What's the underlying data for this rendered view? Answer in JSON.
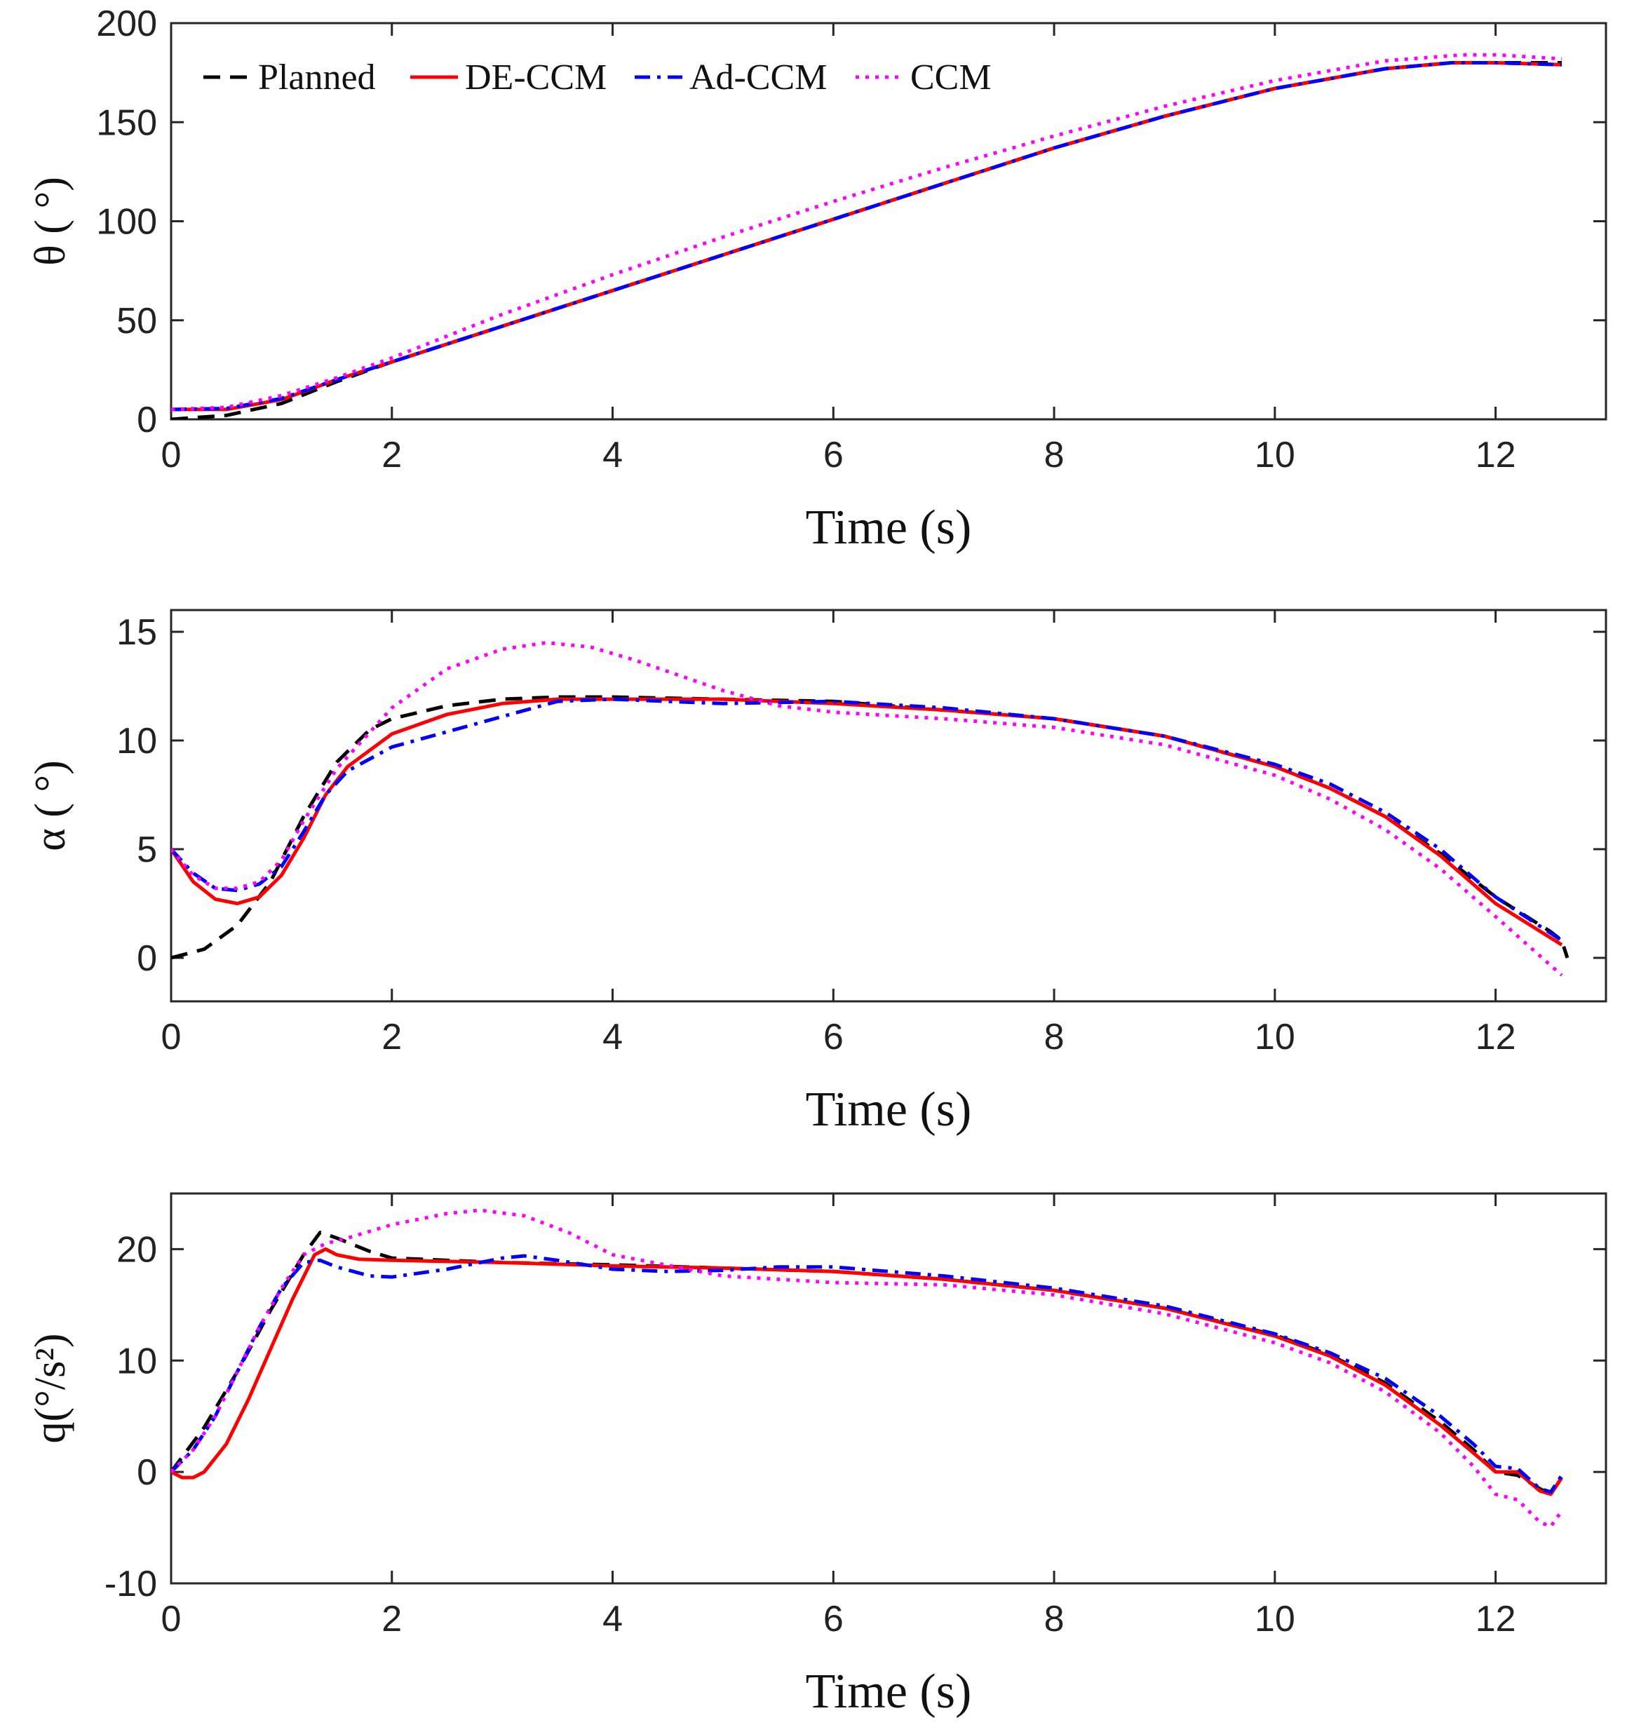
{
  "colors": {
    "planned": "#000000",
    "de_ccm": "#ff0000",
    "ad_ccm": "#0000ff",
    "ccm": "#ff00ff",
    "axis": "#262626"
  },
  "chart_data": [
    {
      "type": "line",
      "title": "",
      "xlabel": "Time (s)",
      "ylabel": "θ ( °)",
      "xlim": [
        0,
        13
      ],
      "ylim": [
        0,
        200
      ],
      "xticks": [
        "0",
        "2",
        "4",
        "6",
        "8",
        "10",
        "12"
      ],
      "yticks": [
        "0",
        "50",
        "100",
        "150",
        "200"
      ],
      "legend": {
        "position": "top",
        "entries": [
          "Planned",
          "DE-CCM",
          "Ad-CCM",
          "CCM"
        ]
      },
      "series": [
        {
          "name": "Planned",
          "style": "dashed",
          "color": "#000000",
          "x": [
            0,
            0.5,
            1,
            1.5,
            2,
            3,
            4,
            5,
            6,
            7,
            8,
            9,
            10,
            11,
            11.6,
            12,
            12.6
          ],
          "y": [
            0,
            2,
            8,
            19,
            29,
            47,
            65,
            83,
            101,
            119,
            137,
            153,
            167,
            177,
            180,
            180,
            180
          ]
        },
        {
          "name": "DE-CCM",
          "style": "solid",
          "color": "#ff0000",
          "x": [
            0,
            0.5,
            1,
            1.5,
            2,
            3,
            4,
            5,
            6,
            7,
            8,
            9,
            10,
            11,
            11.6,
            12,
            12.6
          ],
          "y": [
            5,
            5,
            10,
            20,
            29,
            47,
            65,
            83,
            101,
            119,
            137,
            153,
            167,
            177,
            180,
            180,
            179
          ]
        },
        {
          "name": "Ad-CCM",
          "style": "dashdot",
          "color": "#0000ff",
          "x": [
            0,
            0.5,
            1,
            1.5,
            2,
            3,
            4,
            5,
            6,
            7,
            8,
            9,
            10,
            11,
            11.6,
            12,
            12.6
          ],
          "y": [
            5,
            5.5,
            10.5,
            20,
            29,
            47,
            65,
            83,
            101,
            119,
            137,
            153,
            167,
            177,
            180,
            180,
            179
          ]
        },
        {
          "name": "CCM",
          "style": "dotted",
          "color": "#ff00ff",
          "x": [
            0,
            0.5,
            1,
            1.5,
            2,
            3,
            4,
            5,
            6,
            7,
            8,
            9,
            10,
            11,
            11.7,
            12,
            12.6
          ],
          "y": [
            5,
            6,
            12,
            21,
            31,
            53,
            73,
            92,
            110,
            127,
            143,
            158,
            171,
            181,
            184,
            184,
            182
          ]
        }
      ]
    },
    {
      "type": "line",
      "title": "",
      "xlabel": "Time (s)",
      "ylabel": "α ( °)",
      "xlim": [
        0,
        13
      ],
      "ylim": [
        -2,
        16
      ],
      "xticks": [
        "0",
        "2",
        "4",
        "6",
        "8",
        "10",
        "12"
      ],
      "yticks": [
        "0",
        "5",
        "10",
        "15"
      ],
      "series": [
        {
          "name": "Planned",
          "style": "dashed",
          "color": "#000000",
          "x": [
            0,
            0.3,
            0.6,
            0.9,
            1.2,
            1.5,
            1.8,
            2,
            2.5,
            3,
            3.5,
            4,
            5,
            6,
            7,
            8,
            9,
            10,
            10.5,
            11,
            11.5,
            12,
            12.5,
            12.6,
            12.65
          ],
          "y": [
            0,
            0.4,
            1.5,
            3.5,
            6.5,
            9,
            10.5,
            11,
            11.6,
            11.9,
            12,
            12,
            11.9,
            11.8,
            11.4,
            11,
            10.2,
            8.8,
            7.8,
            6.5,
            4.8,
            2.8,
            1.2,
            0.8,
            0
          ]
        },
        {
          "name": "DE-CCM",
          "style": "solid",
          "color": "#ff0000",
          "x": [
            0,
            0.2,
            0.4,
            0.6,
            0.8,
            1,
            1.2,
            1.4,
            1.6,
            2,
            2.5,
            3,
            3.5,
            4,
            5,
            6,
            7,
            8,
            9,
            10,
            10.5,
            11,
            11.5,
            12,
            12.6
          ],
          "y": [
            5,
            3.5,
            2.7,
            2.5,
            2.8,
            3.8,
            5.5,
            7.5,
            8.8,
            10.3,
            11.2,
            11.7,
            11.9,
            11.9,
            11.9,
            11.7,
            11.4,
            11,
            10.2,
            8.8,
            7.8,
            6.5,
            4.7,
            2.5,
            0.6
          ]
        },
        {
          "name": "Ad-CCM",
          "style": "dashdot",
          "color": "#0000ff",
          "x": [
            0,
            0.2,
            0.4,
            0.6,
            0.8,
            1,
            1.2,
            1.4,
            1.6,
            2,
            2.5,
            3,
            3.5,
            4,
            5,
            6,
            7,
            8,
            9,
            10,
            10.5,
            11,
            11.5,
            12,
            12.6
          ],
          "y": [
            5,
            3.9,
            3.2,
            3.1,
            3.4,
            4.2,
            5.8,
            7.5,
            8.6,
            9.7,
            10.4,
            11.1,
            11.8,
            11.9,
            11.7,
            11.8,
            11.5,
            11,
            10.2,
            8.9,
            8,
            6.7,
            5,
            2.8,
            0.8
          ]
        },
        {
          "name": "CCM",
          "style": "dotted",
          "color": "#ff00ff",
          "x": [
            0,
            0.2,
            0.4,
            0.6,
            0.8,
            1,
            1.2,
            1.5,
            2,
            2.5,
            3,
            3.4,
            3.8,
            4.2,
            5,
            5.5,
            6,
            7,
            8,
            9,
            10,
            10.5,
            11,
            11.5,
            12,
            12.6
          ],
          "y": [
            5,
            3.8,
            3.2,
            3.2,
            3.5,
            4.5,
            6.3,
            8.7,
            11.5,
            13.3,
            14.2,
            14.5,
            14.3,
            13.7,
            12.3,
            11.6,
            11.3,
            11,
            10.6,
            9.8,
            8.4,
            7.3,
            5.9,
            4.1,
            1.9,
            -0.8
          ]
        }
      ]
    },
    {
      "type": "line",
      "title": "",
      "xlabel": "Time (s)",
      "ylabel": "q(°/s²)",
      "xlim": [
        0,
        13
      ],
      "ylim": [
        -10,
        25
      ],
      "xticks": [
        "0",
        "2",
        "4",
        "6",
        "8",
        "10",
        "12"
      ],
      "yticks": [
        "-10",
        "0",
        "10",
        "20"
      ],
      "series": [
        {
          "name": "Planned",
          "style": "dashed",
          "color": "#000000",
          "x": [
            0,
            0.3,
            0.6,
            0.9,
            1.2,
            1.35,
            1.5,
            1.8,
            2,
            3,
            4,
            5,
            6,
            7,
            8,
            9,
            10,
            10.5,
            11,
            11.5,
            11.8,
            12,
            12.2,
            12.4,
            12.5,
            12.6
          ],
          "y": [
            0,
            4,
            9,
            14.5,
            19.5,
            21.5,
            21,
            19.8,
            19.2,
            18.8,
            18.6,
            18.3,
            18,
            17.3,
            16.3,
            14.7,
            12.3,
            10.5,
            8,
            4.5,
            2,
            0,
            -0.3,
            -1.5,
            -2,
            -0.5
          ]
        },
        {
          "name": "DE-CCM",
          "style": "solid",
          "color": "#ff0000",
          "x": [
            0,
            0.1,
            0.2,
            0.3,
            0.5,
            0.7,
            0.9,
            1.1,
            1.3,
            1.4,
            1.5,
            1.7,
            2,
            3,
            4,
            5,
            6,
            7,
            8,
            9,
            10,
            10.5,
            11,
            11.5,
            11.8,
            12,
            12.2,
            12.4,
            12.5,
            12.6
          ],
          "y": [
            0,
            -0.5,
            -0.5,
            0,
            2.5,
            6.5,
            11,
            15.5,
            19.5,
            20,
            19.5,
            19.1,
            19,
            18.8,
            18.5,
            18.3,
            18,
            17.3,
            16.3,
            14.7,
            12.2,
            10.4,
            7.8,
            4.2,
            1.7,
            0,
            0,
            -1.7,
            -2,
            -0.5
          ]
        },
        {
          "name": "Ad-CCM",
          "style": "dashdot",
          "color": "#0000ff",
          "x": [
            0,
            0.2,
            0.4,
            0.6,
            0.8,
            1,
            1.2,
            1.35,
            1.5,
            1.8,
            2,
            2.5,
            3,
            3.2,
            3.5,
            4,
            4.5,
            5,
            5.5,
            6,
            7,
            8,
            9,
            10,
            10.5,
            11,
            11.5,
            11.8,
            12,
            12.2,
            12.4,
            12.5,
            12.6
          ],
          "y": [
            0,
            2,
            5,
            9,
            13,
            16.5,
            18.8,
            19,
            18.4,
            17.6,
            17.5,
            18.2,
            19.2,
            19.4,
            19,
            18.2,
            18,
            18.1,
            18.4,
            18.4,
            17.6,
            16.5,
            14.9,
            12.4,
            10.7,
            8.4,
            5,
            2.5,
            0.5,
            0.3,
            -1.5,
            -1.8,
            -0.3
          ]
        },
        {
          "name": "CCM",
          "style": "dotted",
          "color": "#ff00ff",
          "x": [
            0,
            0.2,
            0.4,
            0.6,
            0.8,
            1,
            1.2,
            1.4,
            1.6,
            2,
            2.5,
            2.8,
            3.2,
            3.6,
            4,
            5,
            6,
            7,
            8,
            9,
            10,
            10.5,
            11,
            11.5,
            11.8,
            12,
            12.2,
            12.4,
            12.5,
            12.6
          ],
          "y": [
            0,
            2,
            5,
            9,
            13,
            16.5,
            19.5,
            20.5,
            21,
            22.2,
            23.2,
            23.5,
            23,
            21.5,
            19.5,
            17.6,
            17,
            16.8,
            15.9,
            14.2,
            11.6,
            9.8,
            7.2,
            3.5,
            0.5,
            -2,
            -2.5,
            -4.5,
            -4.9,
            -3.5
          ]
        }
      ]
    }
  ]
}
